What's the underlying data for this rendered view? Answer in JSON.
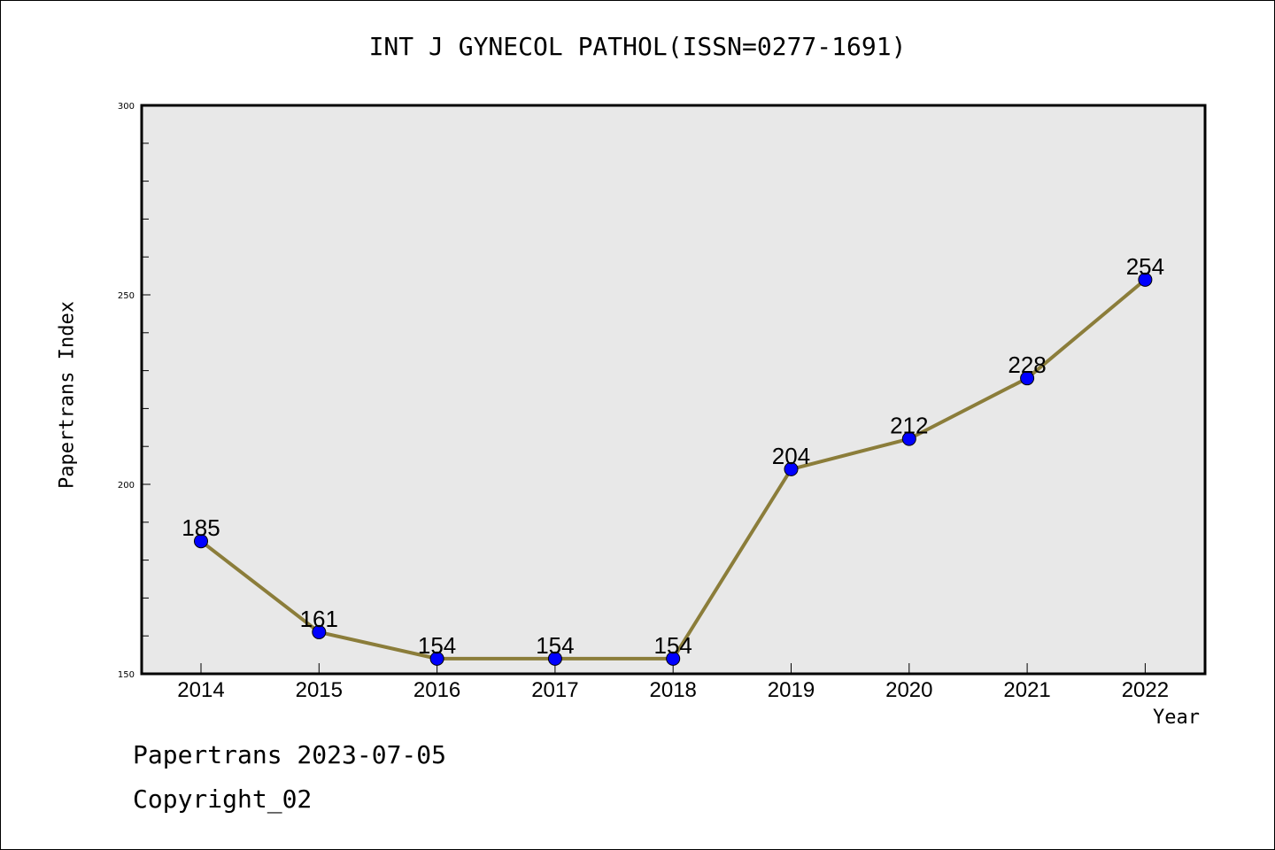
{
  "chart_data": {
    "type": "line",
    "title": "INT J GYNECOL PATHOL(ISSN=0277-1691)",
    "xlabel": "Year",
    "ylabel": "Papertrans Index",
    "x": [
      "2014",
      "2015",
      "2016",
      "2017",
      "2018",
      "2019",
      "2020",
      "2021",
      "2022"
    ],
    "series": [
      {
        "values": [
          185,
          161,
          154,
          154,
          154,
          204,
          212,
          228,
          254
        ]
      }
    ],
    "ylim": [
      150,
      300
    ],
    "yticks": [
      150,
      200,
      250,
      300
    ],
    "grid": false,
    "line_color": "#8b7d3a",
    "marker_color": "#0000ff",
    "plot_background": "#e8e8e8"
  },
  "footer": {
    "line1": "Papertrans 2023-07-05",
    "line2": "Copyright_02"
  }
}
